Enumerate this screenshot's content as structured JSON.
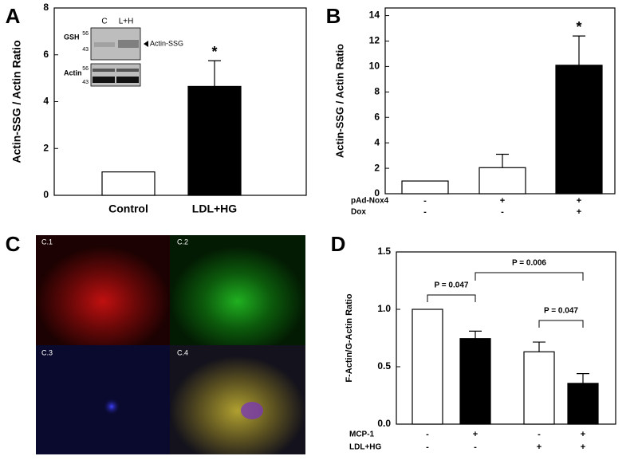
{
  "panel_labels": [
    "A",
    "B",
    "C",
    "D"
  ],
  "inset": {
    "lanes": [
      "C",
      "L+H"
    ],
    "blots": [
      "GSH",
      "Actin"
    ],
    "markers": [
      "56",
      "43",
      "56",
      "43"
    ],
    "band": "Actin-SSG"
  },
  "panel_c": {
    "labels": [
      "C.1",
      "C.2",
      "C.3",
      "C.4"
    ]
  },
  "chart_data": [
    {
      "type": "bar",
      "y_label": "Actin-SSG / Actin Ratio",
      "categories": [
        "Control",
        "LDL+HG"
      ],
      "values": [
        1,
        4.65
      ],
      "errors": [
        null,
        1.1
      ],
      "colors": [
        "#ffffff",
        "#000000"
      ],
      "ylim": [
        0,
        8
      ],
      "yticks": [
        0,
        2,
        4,
        6,
        8
      ],
      "annotation": "*"
    },
    {
      "type": "bar",
      "y_label": "Actin-SSG / Actin Ratio",
      "rows": [
        {
          "name": "pAd-Nox4",
          "signs": [
            "-",
            "+",
            "+"
          ]
        },
        {
          "name": "Dox",
          "signs": [
            "-",
            "-",
            "+"
          ]
        }
      ],
      "values": [
        1,
        2.05,
        10.1
      ],
      "errors": [
        null,
        1.05,
        2.3
      ],
      "colors": [
        "#ffffff",
        "#ffffff",
        "#000000"
      ],
      "ylim": [
        0,
        14.6
      ],
      "yticks": [
        0,
        2,
        4,
        6,
        8,
        10,
        12,
        14
      ],
      "annotation": "*"
    },
    {
      "type": "bar",
      "y_label": "F-Actin/G-Actin Ratio",
      "rows": [
        {
          "name": "MCP-1",
          "signs": [
            "-",
            "+",
            "-",
            "+"
          ]
        },
        {
          "name": "LDL+HG",
          "signs": [
            "-",
            "-",
            "+",
            "+"
          ]
        }
      ],
      "values": [
        1,
        0.745,
        0.63,
        0.355
      ],
      "errors": [
        null,
        0.065,
        0.085,
        0.085
      ],
      "colors": [
        "#ffffff",
        "#000000",
        "#ffffff",
        "#000000"
      ],
      "ylim": [
        0,
        1.5
      ],
      "yticks": [
        {
          "value": 0,
          "label": "0.0"
        },
        {
          "value": 0.5,
          "label": "0.5"
        },
        {
          "value": 1,
          "label": "1.0"
        },
        {
          "value": 1.5,
          "label": "1.5"
        }
      ],
      "comparisons": [
        "P = 0.047",
        "P = 0.006",
        "P = 0.047"
      ]
    }
  ]
}
